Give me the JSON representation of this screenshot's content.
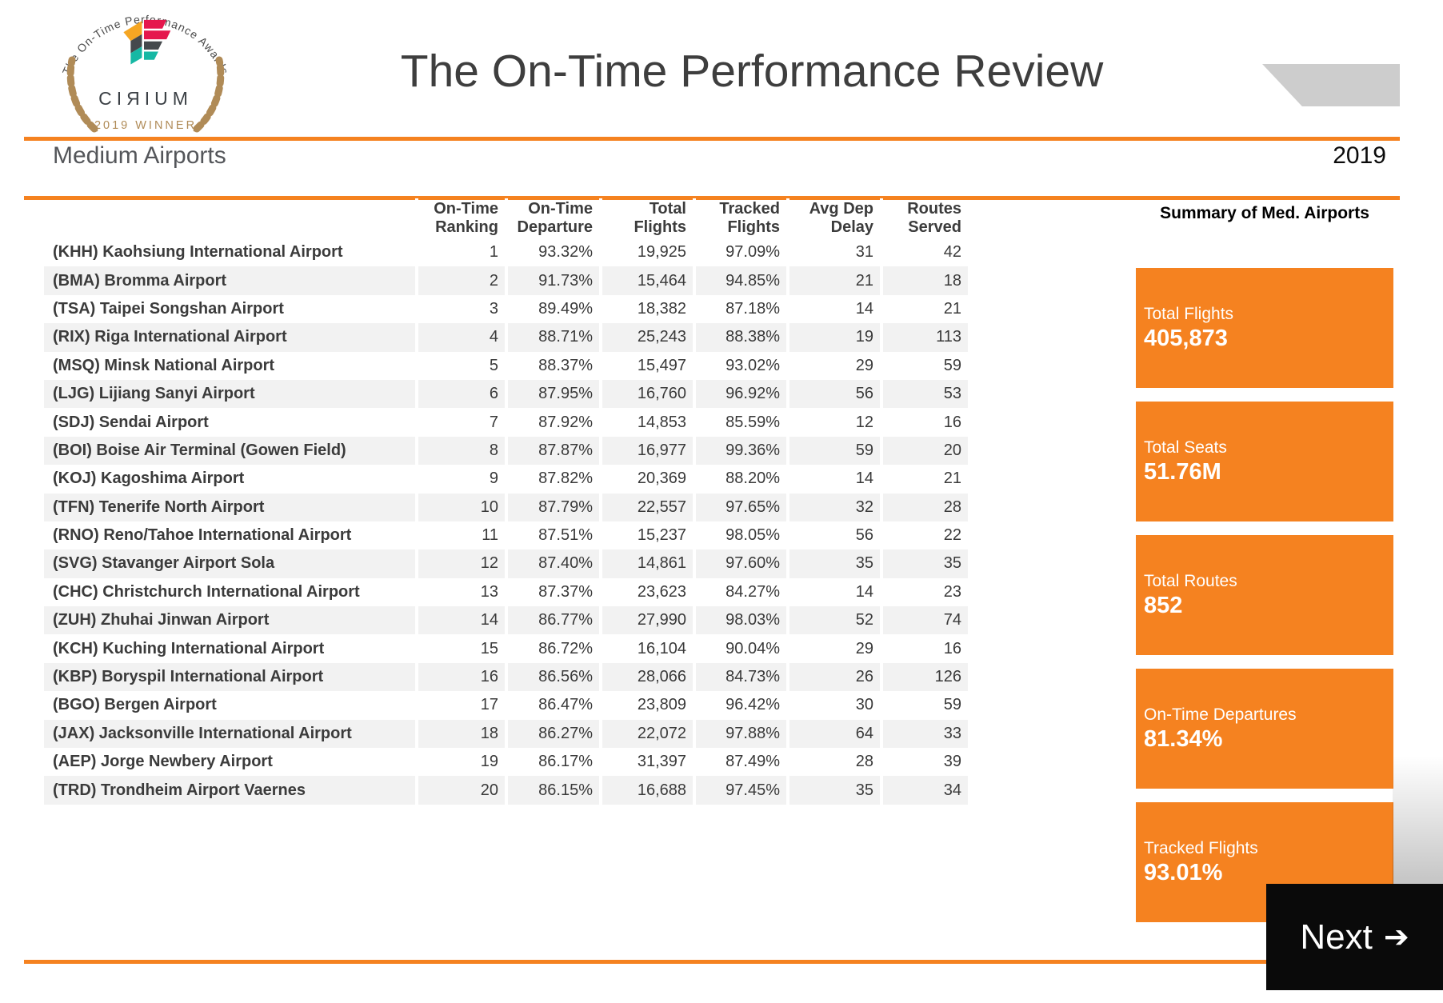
{
  "badge": {
    "arc_text": "The On-Time Performance Awards",
    "brand": "CIЯIUM",
    "winner": "2019 WINNER"
  },
  "header": {
    "title": "The On-Time Performance Review",
    "section": "Medium Airports",
    "year": "2019"
  },
  "table": {
    "headers": {
      "airport": "",
      "ranking": "On-Time\nRanking",
      "departure": "On-Time\nDeparture",
      "total_flights": "Total\nFlights",
      "tracked_flights": "Tracked\nFlights",
      "avg_dep_delay": "Avg Dep\nDelay",
      "routes_served": "Routes\nServed"
    },
    "rows": [
      {
        "airport": "(KHH) Kaohsiung International Airport",
        "ranking": "1",
        "departure": "93.32%",
        "total_flights": "19,925",
        "tracked_flights": "97.09%",
        "avg_dep_delay": "31",
        "routes_served": "42"
      },
      {
        "airport": "(BMA) Bromma Airport",
        "ranking": "2",
        "departure": "91.73%",
        "total_flights": "15,464",
        "tracked_flights": "94.85%",
        "avg_dep_delay": "21",
        "routes_served": "18"
      },
      {
        "airport": "(TSA) Taipei Songshan Airport",
        "ranking": "3",
        "departure": "89.49%",
        "total_flights": "18,382",
        "tracked_flights": "87.18%",
        "avg_dep_delay": "14",
        "routes_served": "21"
      },
      {
        "airport": "(RIX) Riga International Airport",
        "ranking": "4",
        "departure": "88.71%",
        "total_flights": "25,243",
        "tracked_flights": "88.38%",
        "avg_dep_delay": "19",
        "routes_served": "113"
      },
      {
        "airport": "(MSQ) Minsk National Airport",
        "ranking": "5",
        "departure": "88.37%",
        "total_flights": "15,497",
        "tracked_flights": "93.02%",
        "avg_dep_delay": "29",
        "routes_served": "59"
      },
      {
        "airport": "(LJG) Lijiang Sanyi Airport",
        "ranking": "6",
        "departure": "87.95%",
        "total_flights": "16,760",
        "tracked_flights": "96.92%",
        "avg_dep_delay": "56",
        "routes_served": "53"
      },
      {
        "airport": "(SDJ) Sendai Airport",
        "ranking": "7",
        "departure": "87.92%",
        "total_flights": "14,853",
        "tracked_flights": "85.59%",
        "avg_dep_delay": "12",
        "routes_served": "16"
      },
      {
        "airport": "(BOI) Boise Air Terminal (Gowen Field)",
        "ranking": "8",
        "departure": "87.87%",
        "total_flights": "16,977",
        "tracked_flights": "99.36%",
        "avg_dep_delay": "59",
        "routes_served": "20"
      },
      {
        "airport": "(KOJ) Kagoshima Airport",
        "ranking": "9",
        "departure": "87.82%",
        "total_flights": "20,369",
        "tracked_flights": "88.20%",
        "avg_dep_delay": "14",
        "routes_served": "21"
      },
      {
        "airport": "(TFN) Tenerife North Airport",
        "ranking": "10",
        "departure": "87.79%",
        "total_flights": "22,557",
        "tracked_flights": "97.65%",
        "avg_dep_delay": "32",
        "routes_served": "28"
      },
      {
        "airport": "(RNO) Reno/Tahoe International Airport",
        "ranking": "11",
        "departure": "87.51%",
        "total_flights": "15,237",
        "tracked_flights": "98.05%",
        "avg_dep_delay": "56",
        "routes_served": "22"
      },
      {
        "airport": "(SVG) Stavanger Airport Sola",
        "ranking": "12",
        "departure": "87.40%",
        "total_flights": "14,861",
        "tracked_flights": "97.60%",
        "avg_dep_delay": "35",
        "routes_served": "35"
      },
      {
        "airport": "(CHC) Christchurch International Airport",
        "ranking": "13",
        "departure": "87.37%",
        "total_flights": "23,623",
        "tracked_flights": "84.27%",
        "avg_dep_delay": "14",
        "routes_served": "23"
      },
      {
        "airport": "(ZUH) Zhuhai Jinwan Airport",
        "ranking": "14",
        "departure": "86.77%",
        "total_flights": "27,990",
        "tracked_flights": "98.03%",
        "avg_dep_delay": "52",
        "routes_served": "74"
      },
      {
        "airport": "(KCH) Kuching International Airport",
        "ranking": "15",
        "departure": "86.72%",
        "total_flights": "16,104",
        "tracked_flights": "90.04%",
        "avg_dep_delay": "29",
        "routes_served": "16"
      },
      {
        "airport": "(KBP) Boryspil International Airport",
        "ranking": "16",
        "departure": "86.56%",
        "total_flights": "28,066",
        "tracked_flights": "84.73%",
        "avg_dep_delay": "26",
        "routes_served": "126"
      },
      {
        "airport": "(BGO) Bergen Airport",
        "ranking": "17",
        "departure": "86.47%",
        "total_flights": "23,809",
        "tracked_flights": "96.42%",
        "avg_dep_delay": "30",
        "routes_served": "59"
      },
      {
        "airport": "(JAX) Jacksonville International Airport",
        "ranking": "18",
        "departure": "86.27%",
        "total_flights": "22,072",
        "tracked_flights": "97.88%",
        "avg_dep_delay": "64",
        "routes_served": "33"
      },
      {
        "airport": "(AEP) Jorge Newbery Airport",
        "ranking": "19",
        "departure": "86.17%",
        "total_flights": "31,397",
        "tracked_flights": "87.49%",
        "avg_dep_delay": "28",
        "routes_served": "39"
      },
      {
        "airport": "(TRD) Trondheim Airport Vaernes",
        "ranking": "20",
        "departure": "86.15%",
        "total_flights": "16,688",
        "tracked_flights": "97.45%",
        "avg_dep_delay": "35",
        "routes_served": "34"
      }
    ]
  },
  "summary": {
    "title": "Summary of Med. Airports",
    "cards": [
      {
        "label": "Total Flights",
        "value": "405,873"
      },
      {
        "label": "Total Seats",
        "value": "51.76M"
      },
      {
        "label": "Total Routes",
        "value": "852"
      },
      {
        "label": "On-Time Departures",
        "value": "81.34%"
      },
      {
        "label": "Tracked Flights",
        "value": "93.01%"
      }
    ]
  },
  "footer": {
    "next_label": "Next",
    "next_arrow": "➔"
  },
  "colors": {
    "accent_orange": "#F58220",
    "row_stripe": "#F2F2F2",
    "next_button_black": "#0A0A0A",
    "corner_gray": "#CDCDCD",
    "badge_gold": "#B08B57",
    "mark_yellow": "#F5A623",
    "mark_pink": "#E5174D",
    "mark_teal": "#16B8A4",
    "mark_dark": "#45494C"
  }
}
